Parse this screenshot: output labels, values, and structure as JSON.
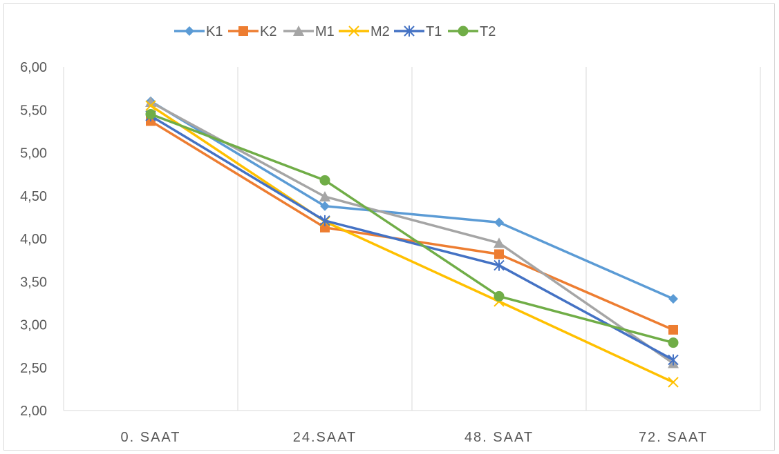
{
  "chart_data": {
    "type": "line",
    "categories": [
      "0. SAAT",
      "24.SAAT",
      "48. SAAT",
      "72. SAAT"
    ],
    "y_ticks": [
      "2,00",
      "2,50",
      "3,00",
      "3,50",
      "4,00",
      "4,50",
      "5,00",
      "5,50",
      "6,00"
    ],
    "ylim": [
      2.0,
      6.0
    ],
    "grid": "vertical",
    "legend_position": "top",
    "series": [
      {
        "name": "K1",
        "values": [
          5.6,
          4.38,
          4.19,
          3.3
        ],
        "color": "#5B9BD5",
        "marker": "diamond"
      },
      {
        "name": "K2",
        "values": [
          5.37,
          4.13,
          3.82,
          2.94
        ],
        "color": "#ED7D31",
        "marker": "square"
      },
      {
        "name": "M1",
        "values": [
          5.59,
          4.49,
          3.95,
          2.55
        ],
        "color": "#A5A5A5",
        "marker": "triangle"
      },
      {
        "name": "M2",
        "values": [
          5.55,
          4.2,
          3.27,
          2.33
        ],
        "color": "#FFC000",
        "marker": "x"
      },
      {
        "name": "T1",
        "values": [
          5.43,
          4.21,
          3.69,
          2.59
        ],
        "color": "#4472C4",
        "marker": "star"
      },
      {
        "name": "T2",
        "values": [
          5.45,
          4.68,
          3.33,
          2.79
        ],
        "color": "#70AD47",
        "marker": "circle"
      }
    ]
  }
}
